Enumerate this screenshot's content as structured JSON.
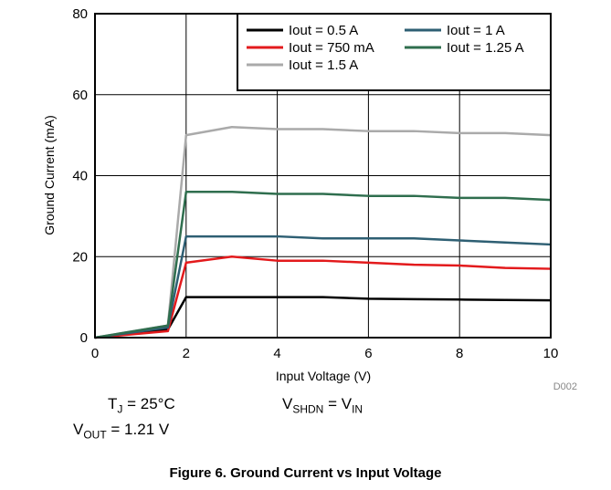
{
  "chart_data": {
    "type": "line",
    "xlabel": "Input Voltage (V)",
    "ylabel": "Ground Current (mA)",
    "xlim": [
      0,
      10
    ],
    "ylim": [
      0,
      80
    ],
    "xticks": [
      "0",
      "2",
      "4",
      "6",
      "8",
      "10"
    ],
    "yticks": [
      "0",
      "20",
      "40",
      "60",
      "80"
    ],
    "grid": true,
    "legend_position": "top-right",
    "series": [
      {
        "name": "Iout = 0.5 A",
        "color": "#000000",
        "x": [
          0,
          1.6,
          2,
          3,
          4,
          5,
          6,
          7,
          8,
          9,
          10
        ],
        "y": [
          0,
          2,
          10,
          10,
          10,
          10,
          9.6,
          9.5,
          9.4,
          9.3,
          9.2
        ]
      },
      {
        "name": "Iout = 750 mA",
        "color": "#e31a1c",
        "x": [
          0,
          1.6,
          2,
          3,
          4,
          5,
          6,
          7,
          8,
          9,
          10
        ],
        "y": [
          0,
          1.6,
          18.5,
          20,
          19,
          19,
          18.5,
          18,
          17.8,
          17.2,
          17
        ]
      },
      {
        "name": "Iout = 1.5 A",
        "color": "#aaaaaa",
        "x": [
          0,
          1.6,
          2,
          3,
          4,
          5,
          6,
          7,
          8,
          9,
          10
        ],
        "y": [
          0,
          3,
          50,
          52,
          51.5,
          51.5,
          51,
          51,
          50.5,
          50.5,
          50
        ]
      },
      {
        "name": "Iout = 1 A",
        "color": "#2e5f73",
        "x": [
          0,
          1.6,
          2,
          3,
          4,
          5,
          6,
          7,
          8,
          9,
          10
        ],
        "y": [
          0,
          2.5,
          25,
          25,
          25,
          24.5,
          24.5,
          24.5,
          24,
          23.5,
          23
        ]
      },
      {
        "name": "Iout = 1.25 A",
        "color": "#2f6e4e",
        "x": [
          0,
          1.6,
          2,
          3,
          4,
          5,
          6,
          7,
          8,
          9,
          10
        ],
        "y": [
          0,
          3,
          36,
          36,
          35.5,
          35.5,
          35,
          35,
          34.5,
          34.5,
          34
        ]
      }
    ],
    "figure_id": "D002"
  },
  "conditions": {
    "tj_main": "T",
    "tj_sub": "J",
    "tj_value": " = 25°C",
    "vshdn_main": "V",
    "vshdn_sub": "SHDN",
    "vshdn_eq": " = V",
    "vshdn_sub2": "IN",
    "vout_main": "V",
    "vout_sub": "OUT",
    "vout_value": " = 1.21 V"
  },
  "caption": "Figure 6. Ground Current vs Input Voltage"
}
